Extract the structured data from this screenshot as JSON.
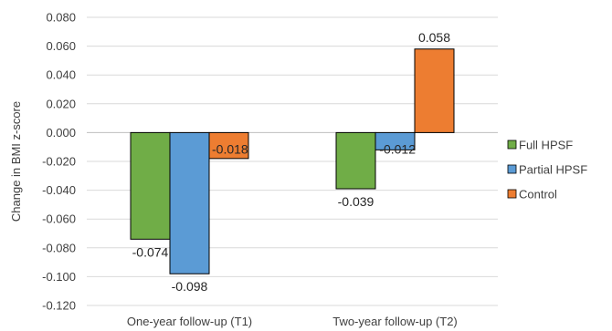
{
  "chart_data": {
    "type": "bar",
    "ylabel": "Change in BMI z-score",
    "xlabel": "",
    "ylim": [
      -0.12,
      0.08
    ],
    "ytick_step": 0.02,
    "yticks": [
      "0.080",
      "0.060",
      "0.040",
      "0.020",
      "0.000",
      "-0.020",
      "-0.040",
      "-0.060",
      "-0.080",
      "-0.100",
      "-0.120"
    ],
    "categories": [
      "One-year follow-up (T1)",
      "Two-year follow-up (T2)"
    ],
    "grid": true,
    "legend_position": "right",
    "series": [
      {
        "name": "Full HPSF",
        "color": "#70ad47",
        "values": [
          -0.074,
          -0.039
        ],
        "labels": [
          "-0.074",
          "-0.039"
        ]
      },
      {
        "name": "Partial HPSF",
        "color": "#5b9bd5",
        "values": [
          -0.098,
          -0.012
        ],
        "labels": [
          "-0.098",
          "-0.012"
        ]
      },
      {
        "name": "Control",
        "color": "#ed7d31",
        "values": [
          -0.018,
          0.058
        ],
        "labels": [
          "-0.018",
          "0.058"
        ]
      }
    ]
  }
}
